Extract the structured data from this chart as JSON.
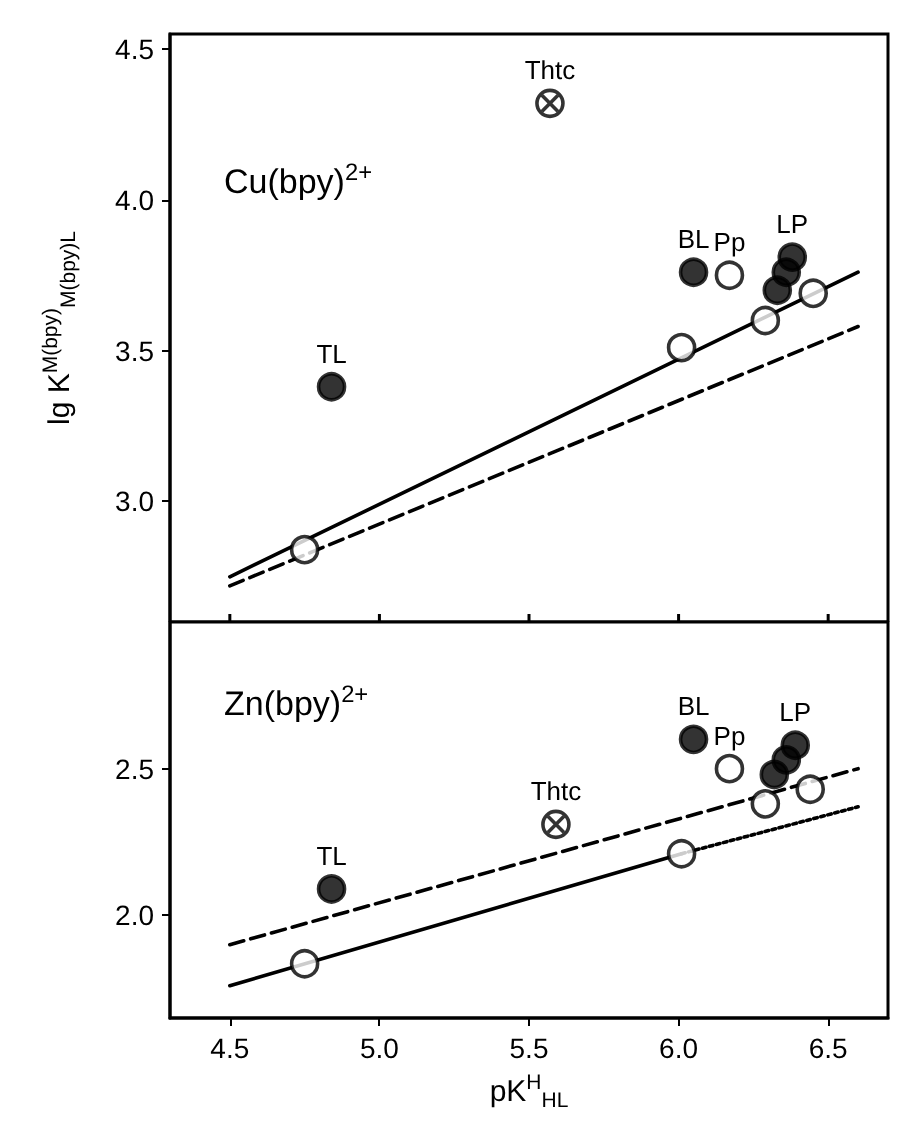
{
  "chart_data": [
    {
      "type": "scatter",
      "ylabel": "lg K$^{M(bpy)}$$_{M(bpy)L}$",
      "xlim": [
        4.3,
        6.7
      ],
      "xticks": [
        4.5,
        5,
        5.5,
        6,
        6.5
      ],
      "ylim": [
        2.6,
        4.55
      ],
      "yticks": [
        {
          "value": 3,
          "label": "3.0"
        },
        3.5,
        {
          "value": 4,
          "label": "4.0"
        },
        4.5
      ],
      "tick_labels": "y",
      "grid": false,
      "annotations": [
        "Cu(bpy)$^{2+}$",
        {
          "text": "TL",
          "x": 4.84,
          "y": 3.38
        },
        {
          "text": "BL",
          "x": 6.05,
          "y": 3.76
        },
        {
          "text": "Pp",
          "x": 6.17,
          "y": 3.75
        },
        {
          "text": "LP",
          "x": 6.38,
          "y": 3.81
        },
        {
          "text": "Thtc",
          "x": 5.57,
          "y": 4.32
        }
      ],
      "series": [
        {
          "type": "line",
          "color": "#000000",
          "line_style": "solid",
          "marker": "none",
          "x": [
            4.5,
            6.6
          ],
          "values": [
            2.75,
            3.76
          ]
        },
        {
          "type": "line",
          "color": "#000000",
          "line_style": "dashed",
          "marker": "none",
          "x": [
            4.5,
            6.6
          ],
          "values": [
            2.72,
            3.58
          ]
        },
        {
          "type": "scatter",
          "color": "#ffffff",
          "marker": "circle",
          "x": [
            4.75,
            6.01,
            6.29,
            6.45
          ],
          "values": [
            2.84,
            3.51,
            3.6,
            3.69
          ]
        },
        {
          "type": "scatter",
          "color": "#000000",
          "marker": "circle",
          "x": [
            4.84,
            6.05,
            6.33,
            6.36,
            6.38
          ],
          "values": [
            3.38,
            3.76,
            3.7,
            3.76,
            3.81
          ]
        },
        {
          "type": "scatter",
          "color": "#ffffff",
          "marker": "circle",
          "x": [
            6.17
          ],
          "values": [
            3.75
          ]
        },
        {
          "type": "scatter",
          "color": "#ffffff",
          "marker": "cross",
          "x": [
            5.57
          ],
          "values": [
            4.32
          ]
        }
      ]
    },
    {
      "type": "scatter",
      "xlabel": "pK$^{H}$$_{HL}$",
      "xlim": [
        4.3,
        6.7
      ],
      "xticks": [
        4.5,
        {
          "value": 5,
          "label": "5.0"
        },
        5.5,
        {
          "value": 6,
          "label": "6.0"
        },
        6.5
      ],
      "ylim": [
        1.65,
        3.0
      ],
      "yticks": [
        {
          "value": 2,
          "label": "2.0"
        },
        2.5
      ],
      "grid": false,
      "annotations": [
        "Zn(bpy)$^{2+}$",
        {
          "text": "TL",
          "x": 4.84,
          "y": 2.09
        },
        {
          "text": "BL",
          "x": 6.05,
          "y": 2.6
        },
        {
          "text": "Pp",
          "x": 6.17,
          "y": 2.5
        },
        {
          "text": "LP",
          "x": 6.39,
          "y": 2.58
        },
        {
          "text": "Thtc",
          "x": 5.59,
          "y": 2.31
        }
      ],
      "series": [
        {
          "type": "line",
          "color": "#000000",
          "line_style": "solid",
          "marker": "none",
          "x": [
            4.5,
            6.01
          ],
          "values": [
            1.76,
            2.21
          ]
        },
        {
          "type": "line",
          "color": "#000000",
          "line_style": "dotted",
          "marker": "none",
          "x": [
            6.01,
            6.6
          ],
          "values": [
            2.21,
            2.37
          ]
        },
        {
          "type": "line",
          "color": "#000000",
          "line_style": "dashed",
          "marker": "none",
          "x": [
            4.5,
            6.6
          ],
          "values": [
            1.9,
            2.5
          ]
        },
        {
          "type": "scatter",
          "color": "#ffffff",
          "marker": "circle",
          "x": [
            4.75,
            6.01,
            6.29,
            6.44
          ],
          "values": [
            1.835,
            2.21,
            2.38,
            2.43
          ]
        },
        {
          "type": "scatter",
          "color": "#000000",
          "marker": "circle",
          "x": [
            4.84,
            6.05,
            6.32,
            6.36,
            6.39
          ],
          "values": [
            2.09,
            2.6,
            2.48,
            2.53,
            2.58
          ]
        },
        {
          "type": "scatter",
          "color": "#ffffff",
          "marker": "circle",
          "x": [
            6.17
          ],
          "values": [
            2.5
          ]
        },
        {
          "type": "scatter",
          "color": "#ffffff",
          "marker": "cross",
          "x": [
            5.59
          ],
          "values": [
            2.31
          ]
        }
      ]
    }
  ]
}
